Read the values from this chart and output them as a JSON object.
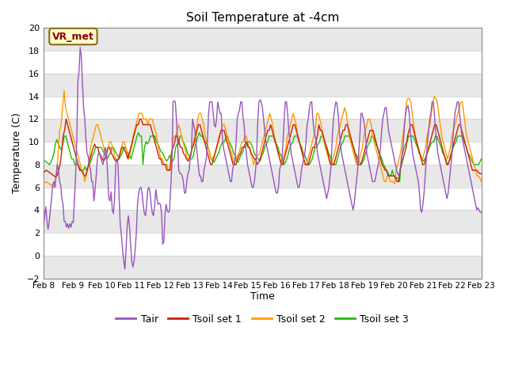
{
  "title": "Soil Temperature at -4cm",
  "xlabel": "Time",
  "ylabel": "Temperature (C)",
  "ylim": [
    -2,
    20
  ],
  "background_color": "#ffffff",
  "plot_bg_color": "#ffffff",
  "annotation_text": "VR_met",
  "annotation_color": "#8b0000",
  "annotation_bg": "#ffffcc",
  "legend_entries": [
    "Tair",
    "Tsoil set 1",
    "Tsoil set 2",
    "Tsoil set 3"
  ],
  "line_colors": [
    "#9955bb",
    "#cc2200",
    "#ff9900",
    "#22bb00"
  ],
  "xtick_labels": [
    "Feb 8",
    "Feb 9",
    "Feb 10",
    "Feb 11",
    "Feb 12",
    "Feb 13",
    "Feb 14",
    "Feb 15",
    "Feb 16",
    "Feb 17",
    "Feb 18",
    "Feb 19",
    "Feb 20",
    "Feb 21",
    "Feb 22",
    "Feb 23"
  ],
  "tair": [
    2.6,
    3.5,
    4.3,
    3.0,
    2.3,
    3.0,
    4.0,
    5.0,
    6.2,
    6.5,
    6.0,
    7.0,
    8.0,
    7.5,
    6.5,
    6.2,
    5.0,
    4.5,
    3.0,
    3.0,
    2.5,
    2.8,
    2.4,
    2.8,
    2.5,
    3.0,
    2.9,
    5.0,
    7.0,
    10.0,
    15.3,
    16.2,
    18.3,
    17.5,
    15.0,
    13.0,
    12.0,
    10.2,
    9.0,
    8.7,
    8.0,
    7.5,
    6.5,
    6.5,
    4.8,
    5.8,
    7.0,
    8.5,
    9.0,
    9.0,
    8.5,
    8.2,
    8.0,
    9.0,
    9.5,
    9.0,
    7.0,
    5.0,
    4.8,
    5.6,
    4.0,
    3.7,
    5.0,
    8.0,
    8.5,
    8.0,
    5.0,
    2.6,
    1.8,
    0.5,
    -0.5,
    -1.2,
    0.5,
    2.6,
    3.5,
    2.6,
    1.0,
    -0.5,
    -1.0,
    -0.5,
    0.5,
    2.0,
    4.5,
    5.5,
    5.9,
    6.0,
    5.5,
    4.4,
    3.7,
    3.5,
    4.5,
    5.8,
    6.0,
    5.5,
    4.4,
    3.7,
    3.5,
    4.5,
    5.8,
    5.0,
    4.5,
    4.6,
    4.5,
    3.7,
    1.0,
    1.2,
    3.7,
    4.5,
    3.9,
    3.8,
    4.0,
    6.0,
    8.0,
    13.5,
    13.6,
    13.5,
    12.0,
    10.0,
    7.5,
    7.2,
    7.2,
    7.0,
    6.5,
    5.5,
    5.5,
    6.5,
    7.2,
    7.5,
    8.5,
    9.0,
    12.0,
    11.5,
    11.0,
    10.0,
    9.0,
    8.0,
    7.0,
    7.0,
    6.5,
    6.5,
    7.5,
    8.0,
    8.5,
    10.0,
    12.5,
    13.5,
    13.5,
    13.5,
    12.5,
    11.5,
    11.3,
    12.0,
    13.5,
    13.0,
    12.5,
    12.5,
    10.5,
    9.5,
    9.0,
    8.5,
    8.0,
    7.5,
    7.0,
    6.5,
    6.5,
    7.5,
    8.0,
    8.5,
    10.0,
    12.0,
    12.5,
    12.8,
    13.5,
    13.5,
    12.2,
    11.5,
    10.0,
    9.0,
    8.0,
    7.5,
    7.0,
    6.5,
    6.0,
    6.0,
    6.5,
    7.5,
    9.0,
    12.0,
    13.5,
    13.7,
    13.5,
    13.0,
    12.0,
    11.0,
    10.0,
    9.5,
    9.0,
    8.5,
    8.0,
    7.5,
    7.0,
    6.5,
    6.0,
    5.5,
    5.5,
    6.0,
    7.5,
    8.0,
    8.5,
    10.0,
    12.0,
    13.5,
    13.5,
    12.5,
    11.0,
    10.0,
    9.0,
    8.5,
    8.0,
    7.5,
    7.0,
    6.5,
    6.0,
    6.0,
    6.5,
    7.5,
    8.0,
    8.5,
    9.0,
    10.0,
    11.5,
    12.0,
    13.0,
    13.5,
    13.5,
    12.0,
    11.0,
    10.5,
    10.0,
    9.0,
    8.5,
    8.0,
    7.5,
    7.0,
    6.5,
    6.0,
    5.5,
    5.0,
    5.5,
    6.0,
    7.0,
    8.0,
    10.5,
    12.0,
    12.8,
    13.5,
    13.4,
    12.5,
    11.0,
    10.0,
    9.0,
    8.5,
    8.0,
    7.5,
    7.0,
    6.5,
    6.0,
    5.5,
    5.0,
    4.5,
    4.0,
    4.5,
    5.5,
    6.5,
    7.5,
    9.0,
    10.5,
    12.5,
    12.5,
    12.0,
    11.5,
    10.5,
    9.0,
    8.5,
    8.0,
    7.5,
    7.0,
    6.5,
    6.5,
    6.5,
    7.0,
    7.5,
    8.0,
    8.5,
    9.5,
    11.0,
    12.0,
    12.5,
    13.0,
    13.0,
    12.0,
    11.0,
    10.5,
    10.0,
    9.5,
    9.0,
    8.5,
    8.0,
    7.5,
    7.2,
    7.0,
    7.5,
    8.0,
    9.0,
    10.0,
    11.5,
    12.5,
    13.0,
    13.2,
    12.5,
    11.0,
    10.0,
    9.0,
    8.5,
    8.0,
    7.5,
    7.0,
    6.5,
    5.5,
    4.0,
    3.8,
    4.5,
    5.5,
    7.0,
    8.5,
    10.0,
    11.0,
    12.0,
    12.5,
    13.5,
    13.5,
    12.5,
    11.0,
    10.0,
    9.0,
    8.5,
    8.0,
    7.5,
    7.0,
    6.5,
    6.0,
    5.5,
    5.0,
    5.5,
    6.5,
    7.5,
    8.5,
    10.0,
    11.5,
    12.5,
    13.0,
    13.5,
    13.5,
    12.5,
    11.5,
    10.5,
    10.0,
    9.5,
    9.0,
    8.5,
    8.0,
    7.5,
    7.0,
    6.5,
    6.0,
    5.5,
    5.0,
    4.5,
    4.0,
    4.2,
    4.0,
    3.8,
    3.8
  ],
  "tsoil1": [
    7.3,
    7.4,
    7.5,
    7.4,
    7.3,
    7.2,
    7.1,
    7.0,
    6.9,
    7.0,
    7.5,
    8.0,
    9.0,
    10.5,
    11.0,
    12.0,
    11.5,
    11.0,
    10.5,
    10.0,
    9.5,
    9.0,
    8.5,
    8.0,
    7.5,
    7.5,
    7.3,
    7.0,
    7.0,
    7.5,
    8.0,
    8.5,
    9.0,
    9.5,
    9.8,
    9.5,
    9.5,
    9.0,
    8.8,
    8.5,
    8.3,
    8.5,
    9.0,
    9.5,
    9.5,
    9.0,
    8.8,
    8.5,
    8.3,
    8.3,
    8.5,
    9.0,
    9.5,
    9.5,
    9.2,
    9.0,
    8.5,
    9.0,
    9.5,
    10.0,
    10.5,
    11.0,
    11.5,
    11.5,
    12.0,
    12.0,
    11.5,
    11.5,
    11.5,
    11.5,
    11.5,
    11.5,
    11.0,
    10.5,
    10.0,
    9.5,
    9.0,
    8.5,
    8.5,
    8.0,
    8.0,
    8.0,
    7.5,
    7.5,
    7.5,
    9.0,
    9.5,
    9.8,
    10.5,
    10.5,
    10.0,
    9.5,
    9.5,
    9.0,
    8.8,
    8.5,
    8.3,
    8.5,
    9.0,
    9.5,
    9.8,
    10.5,
    11.0,
    11.5,
    11.5,
    11.0,
    10.5,
    10.0,
    9.5,
    9.0,
    8.5,
    8.0,
    8.0,
    8.5,
    9.0,
    9.5,
    10.0,
    10.5,
    11.0,
    11.0,
    11.0,
    10.5,
    10.0,
    9.5,
    9.0,
    8.5,
    8.0,
    8.0,
    8.0,
    8.5,
    8.8,
    9.0,
    9.5,
    9.5,
    9.8,
    10.0,
    9.5,
    9.5,
    9.0,
    8.8,
    8.5,
    8.5,
    8.0,
    8.2,
    8.5,
    9.0,
    9.5,
    10.0,
    10.5,
    11.0,
    11.0,
    11.5,
    11.0,
    10.5,
    10.0,
    9.5,
    9.0,
    8.5,
    8.0,
    8.0,
    8.5,
    9.0,
    9.5,
    10.0,
    10.5,
    11.0,
    11.5,
    11.5,
    11.0,
    10.5,
    10.0,
    9.5,
    9.0,
    8.5,
    8.0,
    8.0,
    8.0,
    8.5,
    9.0,
    9.5,
    9.5,
    10.0,
    10.5,
    11.5,
    11.0,
    11.0,
    10.5,
    10.0,
    9.5,
    9.0,
    8.5,
    8.0,
    8.0,
    8.0,
    8.5,
    9.0,
    9.5,
    10.0,
    10.5,
    11.0,
    11.0,
    11.5,
    11.5,
    11.0,
    10.5,
    10.0,
    9.5,
    9.0,
    8.5,
    8.0,
    8.0,
    8.0,
    8.5,
    9.0,
    9.5,
    10.0,
    10.5,
    11.0,
    11.0,
    11.0,
    10.5,
    10.0,
    9.5,
    9.0,
    8.5,
    8.0,
    7.8,
    7.5,
    7.5,
    7.0,
    7.0,
    7.0,
    7.0,
    7.0,
    6.8,
    6.5,
    6.5,
    7.5,
    8.0,
    8.5,
    9.0,
    9.5,
    10.5,
    11.0,
    11.5,
    11.5,
    11.0,
    10.5,
    10.0,
    9.5,
    9.0,
    8.5,
    8.0,
    8.0,
    8.5,
    9.0,
    9.5,
    10.0,
    10.5,
    11.0,
    11.5,
    11.5,
    11.0,
    10.5,
    10.0,
    9.5,
    9.0,
    8.5,
    8.0,
    8.0,
    8.5,
    9.0,
    9.5,
    10.0,
    10.5,
    11.0,
    11.5,
    11.5,
    11.0,
    10.5,
    10.0,
    9.5,
    9.0,
    8.5,
    8.0,
    7.5,
    7.5,
    7.5,
    7.5,
    7.3,
    7.2,
    7.2
  ],
  "tsoil2": [
    6.3,
    6.4,
    6.5,
    6.4,
    6.3,
    6.2,
    6.1,
    6.0,
    6.5,
    7.5,
    9.0,
    11.0,
    11.5,
    13.0,
    14.5,
    13.0,
    12.5,
    12.0,
    11.5,
    11.0,
    10.5,
    10.0,
    9.5,
    9.0,
    8.5,
    8.0,
    7.5,
    7.5,
    6.5,
    7.0,
    7.5,
    8.5,
    9.5,
    10.0,
    10.5,
    11.0,
    11.5,
    11.5,
    11.0,
    10.5,
    10.0,
    9.5,
    9.0,
    9.0,
    9.5,
    10.0,
    10.0,
    9.5,
    9.0,
    8.5,
    8.3,
    8.5,
    9.0,
    9.5,
    10.0,
    10.0,
    9.5,
    9.0,
    8.5,
    9.0,
    9.5,
    10.5,
    11.0,
    11.5,
    12.0,
    12.5,
    12.5,
    12.5,
    12.0,
    12.0,
    12.0,
    11.5,
    12.0,
    12.0,
    12.0,
    11.5,
    11.0,
    10.5,
    9.5,
    9.0,
    8.5,
    8.5,
    8.0,
    8.0,
    8.0,
    7.5,
    7.5,
    7.5,
    10.0,
    10.5,
    10.5,
    11.0,
    11.5,
    11.0,
    10.5,
    10.0,
    9.5,
    9.0,
    8.5,
    8.5,
    8.8,
    9.5,
    10.0,
    10.5,
    11.0,
    12.0,
    12.5,
    12.5,
    12.0,
    11.5,
    10.5,
    10.0,
    9.5,
    9.0,
    8.5,
    8.5,
    8.8,
    9.0,
    9.5,
    10.0,
    10.5,
    11.0,
    11.5,
    11.5,
    11.0,
    10.5,
    10.0,
    9.5,
    9.0,
    8.5,
    8.0,
    8.5,
    8.8,
    9.0,
    9.5,
    10.0,
    10.0,
    10.5,
    10.5,
    10.0,
    9.5,
    9.0,
    8.5,
    8.0,
    8.5,
    8.5,
    8.8,
    9.0,
    9.5,
    10.0,
    10.5,
    11.0,
    11.5,
    12.0,
    12.5,
    12.0,
    11.5,
    10.5,
    10.0,
    9.5,
    9.0,
    8.5,
    8.0,
    8.5,
    9.0,
    9.5,
    10.5,
    11.0,
    11.5,
    12.0,
    12.5,
    12.0,
    11.5,
    10.5,
    10.0,
    9.5,
    9.0,
    8.5,
    8.0,
    8.0,
    8.5,
    9.0,
    9.5,
    10.0,
    10.5,
    11.0,
    12.5,
    12.5,
    12.0,
    11.5,
    10.5,
    10.0,
    9.5,
    9.0,
    8.5,
    8.0,
    8.0,
    8.5,
    9.0,
    9.5,
    10.5,
    11.0,
    11.5,
    12.0,
    12.5,
    13.0,
    12.5,
    11.5,
    10.5,
    10.0,
    9.5,
    9.0,
    8.5,
    8.0,
    8.0,
    8.5,
    9.0,
    9.5,
    10.5,
    11.0,
    11.5,
    12.0,
    12.0,
    11.5,
    10.5,
    10.0,
    9.5,
    9.0,
    8.5,
    8.0,
    7.5,
    7.0,
    6.5,
    6.5,
    7.0,
    7.0,
    6.5,
    6.5,
    6.5,
    6.3,
    7.5,
    8.0,
    8.5,
    9.0,
    10.0,
    11.0,
    12.0,
    13.5,
    13.8,
    13.8,
    13.5,
    12.5,
    11.5,
    10.5,
    10.0,
    9.5,
    9.0,
    8.5,
    8.5,
    9.0,
    9.5,
    10.5,
    11.0,
    11.5,
    12.5,
    13.5,
    14.0,
    13.8,
    13.5,
    12.5,
    11.5,
    10.5,
    10.0,
    9.5,
    9.0,
    8.5,
    9.0,
    9.5,
    10.5,
    11.0,
    11.5,
    12.0,
    12.5,
    13.0,
    13.5,
    13.5,
    12.5,
    11.5,
    10.5,
    10.0,
    9.5,
    9.0,
    8.5,
    8.0,
    7.5,
    7.0,
    7.0,
    6.8,
    6.5
  ],
  "tsoil3": [
    8.4,
    8.3,
    8.2,
    8.1,
    8.0,
    8.2,
    8.5,
    9.0,
    9.8,
    10.2,
    9.8,
    9.5,
    9.3,
    9.8,
    10.5,
    10.5,
    10.0,
    9.5,
    9.0,
    8.5,
    8.5,
    8.0,
    8.0,
    8.0,
    7.8,
    7.5,
    7.5,
    7.5,
    7.8,
    7.5,
    7.8,
    8.0,
    8.3,
    8.8,
    9.0,
    9.5,
    9.5,
    9.5,
    9.5,
    9.5,
    9.2,
    9.0,
    8.8,
    8.5,
    8.8,
    9.0,
    9.5,
    9.5,
    9.2,
    9.0,
    8.8,
    8.5,
    8.8,
    9.0,
    9.5,
    9.5,
    9.2,
    9.0,
    8.8,
    8.5,
    9.0,
    9.5,
    10.0,
    10.5,
    10.8,
    10.5,
    10.5,
    8.0,
    9.5,
    10.0,
    9.8,
    10.0,
    10.5,
    10.5,
    10.5,
    10.5,
    10.0,
    9.8,
    9.5,
    9.2,
    9.0,
    8.8,
    8.5,
    8.3,
    8.5,
    8.8,
    8.5,
    8.3,
    8.5,
    9.5,
    9.8,
    9.8,
    10.5,
    10.5,
    10.0,
    9.8,
    9.5,
    9.0,
    8.8,
    8.5,
    8.5,
    8.8,
    9.5,
    10.0,
    10.5,
    10.8,
    10.5,
    10.5,
    10.2,
    10.0,
    9.8,
    9.5,
    9.0,
    8.5,
    8.3,
    8.2,
    8.5,
    8.8,
    9.0,
    9.5,
    9.8,
    10.0,
    10.0,
    10.5,
    10.5,
    10.0,
    9.8,
    9.5,
    9.0,
    8.8,
    8.5,
    8.2,
    8.5,
    8.8,
    9.0,
    9.5,
    9.5,
    9.8,
    10.0,
    10.0,
    9.8,
    9.5,
    9.0,
    8.8,
    8.5,
    8.5,
    8.3,
    8.8,
    9.0,
    9.5,
    9.8,
    10.0,
    10.5,
    10.5,
    10.5,
    10.5,
    10.0,
    9.8,
    9.5,
    9.0,
    8.8,
    8.5,
    8.0,
    8.2,
    8.5,
    9.0,
    9.5,
    9.8,
    10.0,
    10.5,
    10.5,
    10.5,
    10.0,
    9.8,
    9.5,
    9.0,
    8.8,
    8.5,
    8.0,
    8.0,
    8.2,
    8.5,
    9.0,
    9.5,
    9.5,
    9.8,
    10.0,
    10.5,
    10.5,
    10.2,
    9.8,
    9.5,
    9.0,
    8.8,
    8.5,
    8.0,
    8.0,
    8.0,
    8.5,
    9.0,
    9.5,
    9.8,
    10.0,
    10.5,
    10.5,
    10.5,
    10.5,
    10.2,
    9.8,
    9.5,
    9.0,
    8.8,
    8.5,
    8.2,
    8.0,
    8.2,
    8.5,
    9.0,
    9.5,
    9.8,
    10.0,
    10.5,
    10.5,
    10.2,
    9.8,
    9.5,
    9.0,
    8.8,
    8.5,
    8.0,
    7.8,
    7.5,
    7.3,
    7.0,
    7.0,
    7.5,
    7.0,
    7.0,
    6.8,
    6.8,
    6.5,
    8.5,
    9.0,
    9.5,
    9.8,
    10.0,
    10.5,
    10.5,
    10.5,
    10.5,
    10.2,
    9.8,
    9.5,
    9.0,
    8.8,
    8.5,
    8.3,
    8.5,
    8.8,
    9.2,
    9.5,
    9.8,
    10.0,
    10.0,
    10.5,
    10.5,
    10.2,
    9.8,
    9.5,
    9.0,
    8.8,
    8.5,
    8.0,
    8.2,
    8.5,
    9.0,
    9.5,
    9.8,
    10.0,
    10.5,
    10.5,
    10.5,
    10.5,
    10.2,
    9.8,
    9.5,
    9.0,
    8.8,
    8.5,
    8.2,
    8.0,
    8.0,
    8.0,
    8.0,
    8.2,
    8.5
  ]
}
